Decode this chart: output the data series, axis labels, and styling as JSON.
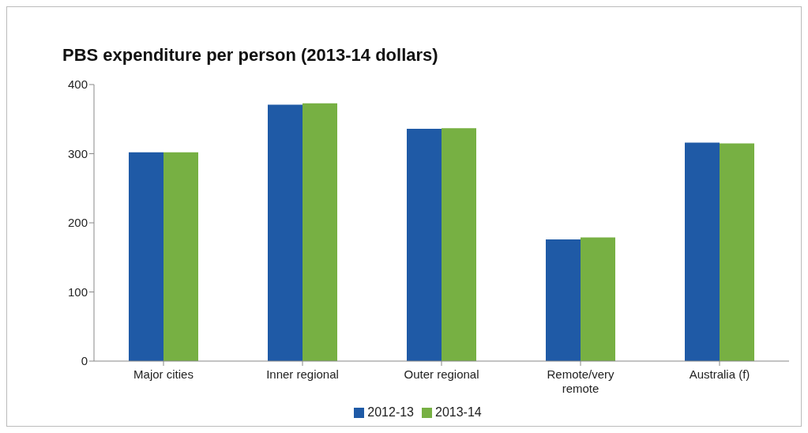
{
  "chart_data": {
    "type": "bar",
    "title": "PBS expenditure per person (2013-14 dollars)",
    "categories": [
      "Major cities",
      "Inner regional",
      "Outer regional",
      "Remote/very remote",
      "Australia (f)"
    ],
    "series": [
      {
        "name": "2012-13",
        "color": "#1f5aa6",
        "values": [
          302,
          371,
          336,
          176,
          316
        ]
      },
      {
        "name": "2013-14",
        "color": "#77b043",
        "values": [
          302,
          373,
          337,
          179,
          315
        ]
      }
    ],
    "ylim": [
      0,
      400
    ],
    "yticks": [
      0,
      100,
      200,
      300,
      400
    ],
    "grid": false,
    "legend": "bottom"
  }
}
